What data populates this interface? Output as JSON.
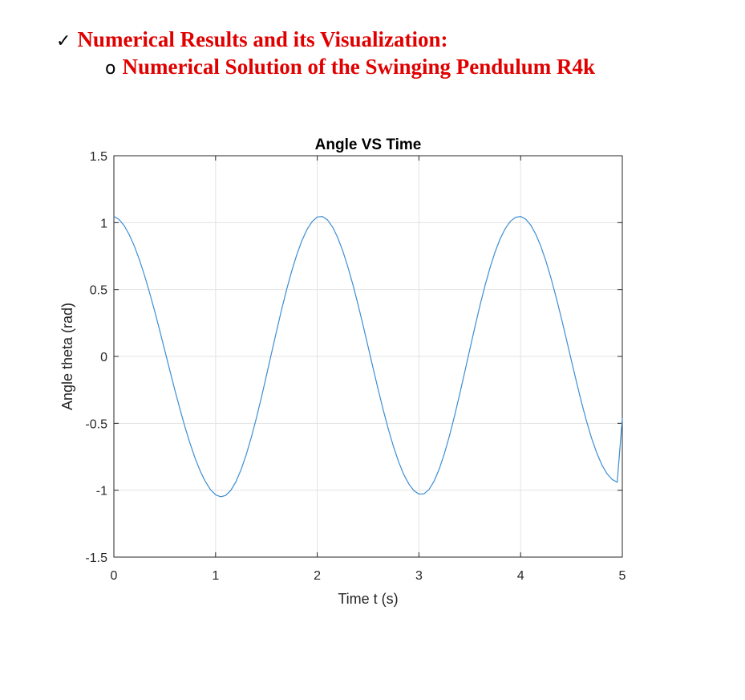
{
  "headings": {
    "main": {
      "bullet": "✓",
      "text": "Numerical Results and its Visualization:",
      "color": "#e00000"
    },
    "sub": {
      "bullet": "o",
      "text": "Numerical Solution of the Swinging Pendulum R4k",
      "color": "#e00000"
    }
  },
  "chart_data": {
    "type": "line",
    "title": "Angle VS Time",
    "xlabel": "Time t (s)",
    "ylabel": "Angle theta (rad)",
    "xlim": [
      0,
      5
    ],
    "ylim": [
      -1.5,
      1.5
    ],
    "xticks": [
      0,
      1,
      2,
      3,
      4,
      5
    ],
    "xtick_labels": [
      "0",
      "1",
      "2",
      "3",
      "4",
      "5"
    ],
    "yticks": [
      1.5,
      1,
      0.5,
      0,
      -0.5,
      -1,
      -1.5
    ],
    "ytick_labels": [
      "1.5",
      "1",
      "0.5",
      "0",
      "-0.5",
      "-1",
      "-1.5"
    ],
    "grid": true,
    "line_color": "#3d8ed3",
    "series": [
      {
        "x": [
          0,
          0.05,
          0.1,
          0.15,
          0.2,
          0.25,
          0.3,
          0.35,
          0.4,
          0.45,
          0.5,
          0.55,
          0.6,
          0.65,
          0.7,
          0.75,
          0.8,
          0.85,
          0.9,
          0.95,
          1,
          1.05,
          1.1,
          1.15,
          1.2,
          1.25,
          1.3,
          1.35,
          1.4,
          1.45,
          1.5,
          1.55,
          1.6,
          1.65,
          1.7,
          1.75,
          1.8,
          1.85,
          1.9,
          1.95,
          2,
          2.05,
          2.1,
          2.15,
          2.2,
          2.25,
          2.3,
          2.35,
          2.4,
          2.45,
          2.5,
          2.55,
          2.6,
          2.65,
          2.7,
          2.75,
          2.8,
          2.85,
          2.9,
          2.95,
          3,
          3.05,
          3.1,
          3.15,
          3.2,
          3.25,
          3.3,
          3.35,
          3.4,
          3.45,
          3.5,
          3.55,
          3.6,
          3.65,
          3.7,
          3.75,
          3.8,
          3.85,
          3.9,
          3.95,
          4,
          4.05,
          4.1,
          4.15,
          4.2,
          4.25,
          4.3,
          4.35,
          4.4,
          4.45,
          4.5,
          4.55,
          4.6,
          4.65,
          4.7,
          4.75,
          4.8,
          4.85,
          4.9,
          4.95,
          5
        ],
        "y": [
          1.047,
          1.024,
          0.979,
          0.912,
          0.827,
          0.725,
          0.609,
          0.48,
          0.342,
          0.197,
          0.047,
          -0.104,
          -0.252,
          -0.394,
          -0.529,
          -0.652,
          -0.763,
          -0.858,
          -0.936,
          -0.996,
          -1.034,
          -1.049,
          -1.039,
          -1.001,
          -0.937,
          -0.848,
          -0.738,
          -0.609,
          -0.465,
          -0.309,
          -0.144,
          0.024,
          0.19,
          0.352,
          0.503,
          0.641,
          0.763,
          0.867,
          0.95,
          1.008,
          1.042,
          1.046,
          1.021,
          0.968,
          0.89,
          0.791,
          0.672,
          0.538,
          0.391,
          0.235,
          0.073,
          -0.09,
          -0.25,
          -0.403,
          -0.546,
          -0.675,
          -0.787,
          -0.881,
          -0.953,
          -1.003,
          -1.029,
          -1.027,
          -0.994,
          -0.931,
          -0.841,
          -0.727,
          -0.594,
          -0.445,
          -0.285,
          -0.118,
          0.051,
          0.219,
          0.38,
          0.53,
          0.665,
          0.783,
          0.881,
          0.957,
          1.01,
          1.04,
          1.046,
          1.026,
          0.981,
          0.912,
          0.821,
          0.71,
          0.582,
          0.44,
          0.288,
          0.129,
          -0.033,
          -0.193,
          -0.347,
          -0.489,
          -0.616,
          -0.724,
          -0.812,
          -0.877,
          -0.92,
          -0.94,
          -0.46
        ]
      }
    ]
  }
}
